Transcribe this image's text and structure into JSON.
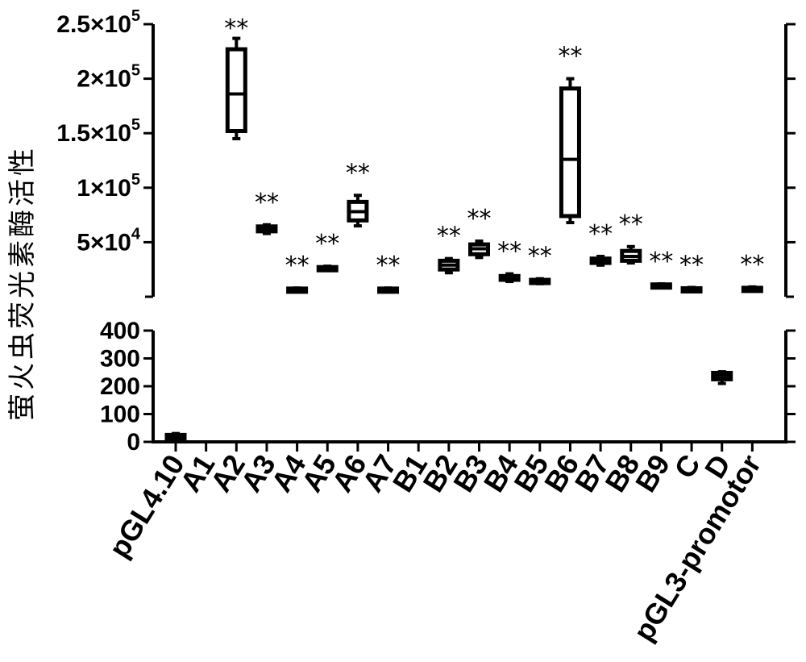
{
  "chart_data": {
    "type": "box",
    "ylabel": "萤火虫荧光素酶活性",
    "categories": [
      "pGL4.10",
      "A1",
      "A2",
      "A3",
      "A4",
      "A5",
      "A6",
      "A7",
      "B1",
      "B2",
      "B3",
      "B4",
      "B5",
      "B6",
      "B7",
      "B8",
      "B9",
      "C",
      "D",
      "pGL3-promotor"
    ],
    "significance": [
      "",
      "",
      "**",
      "**",
      "**",
      "**",
      "**",
      "**",
      "",
      "**",
      "**",
      "**",
      "**",
      "**",
      "**",
      "**",
      "**",
      "**",
      "",
      "**"
    ],
    "upper_axis": {
      "ylim": [
        0,
        250000
      ],
      "ticks": [
        {
          "value": 50000,
          "mant": "5",
          "exp": "4"
        },
        {
          "value": 100000,
          "mant": "1",
          "exp": "5"
        },
        {
          "value": 150000,
          "mant": "1.5",
          "exp": "5"
        },
        {
          "value": 200000,
          "mant": "2",
          "exp": "5"
        },
        {
          "value": 250000,
          "mant": "2.5",
          "exp": "5"
        }
      ]
    },
    "lower_axis": {
      "ylim": [
        0,
        400
      ],
      "ticks": [
        {
          "value": 0,
          "label": "0"
        },
        {
          "value": 100,
          "label": "100"
        },
        {
          "value": 200,
          "label": "200"
        },
        {
          "value": 300,
          "label": "300"
        },
        {
          "value": 400,
          "label": "400"
        }
      ]
    },
    "boxes": [
      {
        "category": "pGL4.10",
        "axis": "lower",
        "min": 5,
        "q1": 12,
        "median": 18,
        "q3": 25,
        "max": 30
      },
      {
        "category": "A2",
        "axis": "upper",
        "min": 145000,
        "q1": 152000,
        "median": 186000,
        "q3": 227000,
        "max": 237000
      },
      {
        "category": "A3",
        "axis": "upper",
        "min": 58000,
        "q1": 60000,
        "median": 62000,
        "q3": 64500,
        "max": 66000
      },
      {
        "category": "A4",
        "axis": "upper",
        "min": 6000,
        "q1": 6500,
        "median": 7000,
        "q3": 7500,
        "max": 8000
      },
      {
        "category": "A5",
        "axis": "upper",
        "min": 25000,
        "q1": 25800,
        "median": 26500,
        "q3": 27200,
        "max": 28000
      },
      {
        "category": "A6",
        "axis": "upper",
        "min": 65000,
        "q1": 70000,
        "median": 78000,
        "q3": 87000,
        "max": 93000
      },
      {
        "category": "A7",
        "axis": "upper",
        "min": 6000,
        "q1": 6500,
        "median": 7000,
        "q3": 7500,
        "max": 8000
      },
      {
        "category": "B2",
        "axis": "upper",
        "min": 22000,
        "q1": 25000,
        "median": 29000,
        "q3": 33000,
        "max": 35000
      },
      {
        "category": "B3",
        "axis": "upper",
        "min": 36000,
        "q1": 39000,
        "median": 44000,
        "q3": 48000,
        "max": 51000
      },
      {
        "category": "B4",
        "axis": "upper",
        "min": 14000,
        "q1": 15500,
        "median": 17500,
        "q3": 19000,
        "max": 21000
      },
      {
        "category": "B5",
        "axis": "upper",
        "min": 12000,
        "q1": 13000,
        "median": 14000,
        "q3": 15500,
        "max": 16500
      },
      {
        "category": "B6",
        "axis": "upper",
        "min": 68000,
        "q1": 74000,
        "median": 126000,
        "q3": 191000,
        "max": 200000
      },
      {
        "category": "B7",
        "axis": "upper",
        "min": 29000,
        "q1": 31000,
        "median": 33000,
        "q3": 35000,
        "max": 37000
      },
      {
        "category": "B8",
        "axis": "upper",
        "min": 31000,
        "q1": 33000,
        "median": 37000,
        "q3": 42000,
        "max": 46000
      },
      {
        "category": "B9",
        "axis": "upper",
        "min": 9500,
        "q1": 10200,
        "median": 10800,
        "q3": 11300,
        "max": 11800
      },
      {
        "category": "C",
        "axis": "upper",
        "min": 6000,
        "q1": 6500,
        "median": 7000,
        "q3": 7800,
        "max": 8500
      },
      {
        "category": "D",
        "axis": "lower",
        "min": 210,
        "q1": 225,
        "median": 238,
        "q3": 248,
        "max": 252
      },
      {
        "category": "pGL3-promotor",
        "axis": "upper",
        "min": 6000,
        "q1": 6800,
        "median": 7500,
        "q3": 8200,
        "max": 9000
      }
    ]
  }
}
